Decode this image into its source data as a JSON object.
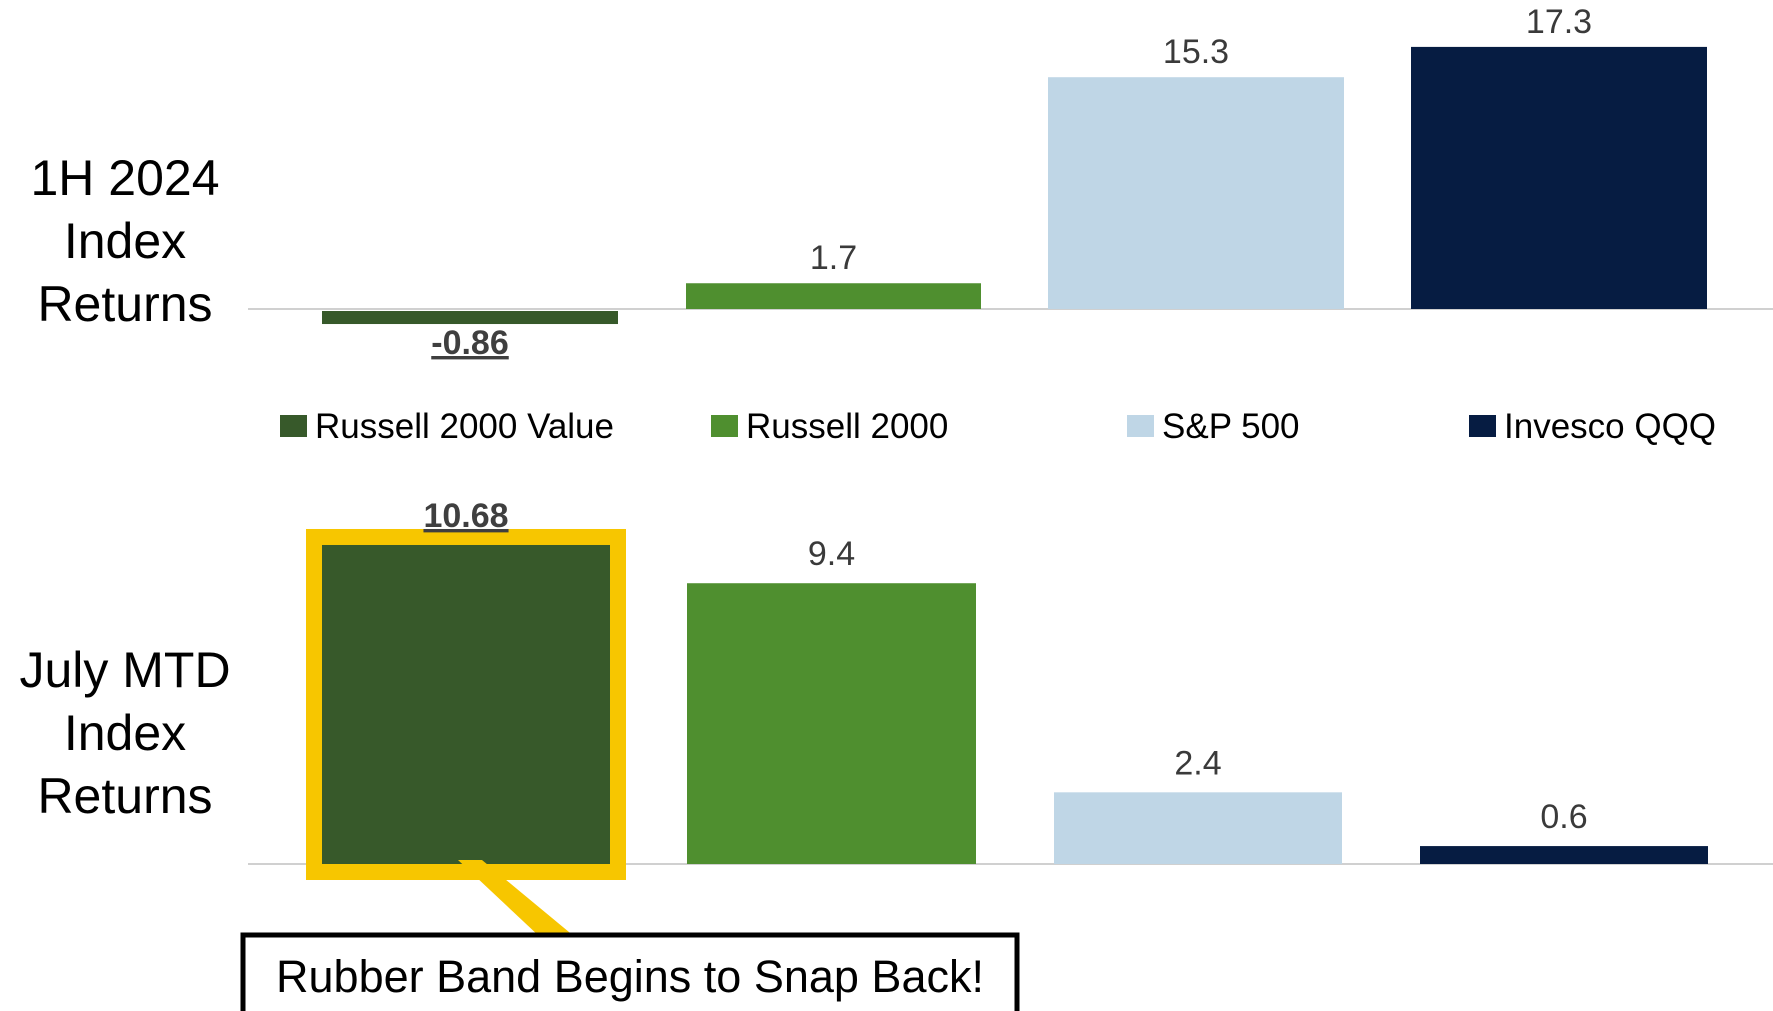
{
  "headline": "",
  "colors": {
    "russell_2000_value": "#37592a",
    "russell_2000": "#4f8f2f",
    "sp_500": "#bfd6e6",
    "invesco_qqq": "#061c42",
    "highlight": "#f7c600",
    "axis": "#d0d0d0"
  },
  "legend": {
    "items": [
      {
        "name": "Russell 2000 Value",
        "color": "#37592a"
      },
      {
        "name": "Russell 2000",
        "color": "#4f8f2f"
      },
      {
        "name": "S&P 500",
        "color": "#bfd6e6"
      },
      {
        "name": "Invesco QQQ",
        "color": "#061c42"
      }
    ]
  },
  "callout": {
    "text": "Rubber Band Begins to Snap Back!"
  },
  "chart_data": [
    {
      "type": "bar",
      "title": "1H 2024 Index Returns",
      "title_lines": [
        "1H 2024",
        "Index",
        "Returns"
      ],
      "categories": [
        "Russell 2000 Value",
        "Russell 2000",
        "S&P 500",
        "Invesco QQQ"
      ],
      "values": [
        -0.86,
        1.7,
        15.3,
        17.3
      ],
      "labels": [
        "-0.86",
        "1.7",
        "15.3",
        "17.3"
      ],
      "emphasized_index": 0,
      "ylim": [
        -0.86,
        17.3
      ],
      "grid": false,
      "legend": "bottom"
    },
    {
      "type": "bar",
      "title": "July MTD Index Returns",
      "title_lines": [
        "July MTD",
        "Index",
        "Returns"
      ],
      "categories": [
        "Russell 2000 Value",
        "Russell 2000",
        "S&P 500",
        "Invesco QQQ"
      ],
      "values": [
        10.68,
        9.4,
        2.4,
        0.6
      ],
      "labels": [
        "10.68",
        "9.4",
        "2.4",
        "0.6"
      ],
      "emphasized_index": 0,
      "highlighted_index": 0,
      "ylim": [
        0,
        10.68
      ],
      "grid": false,
      "legend": "top"
    }
  ]
}
